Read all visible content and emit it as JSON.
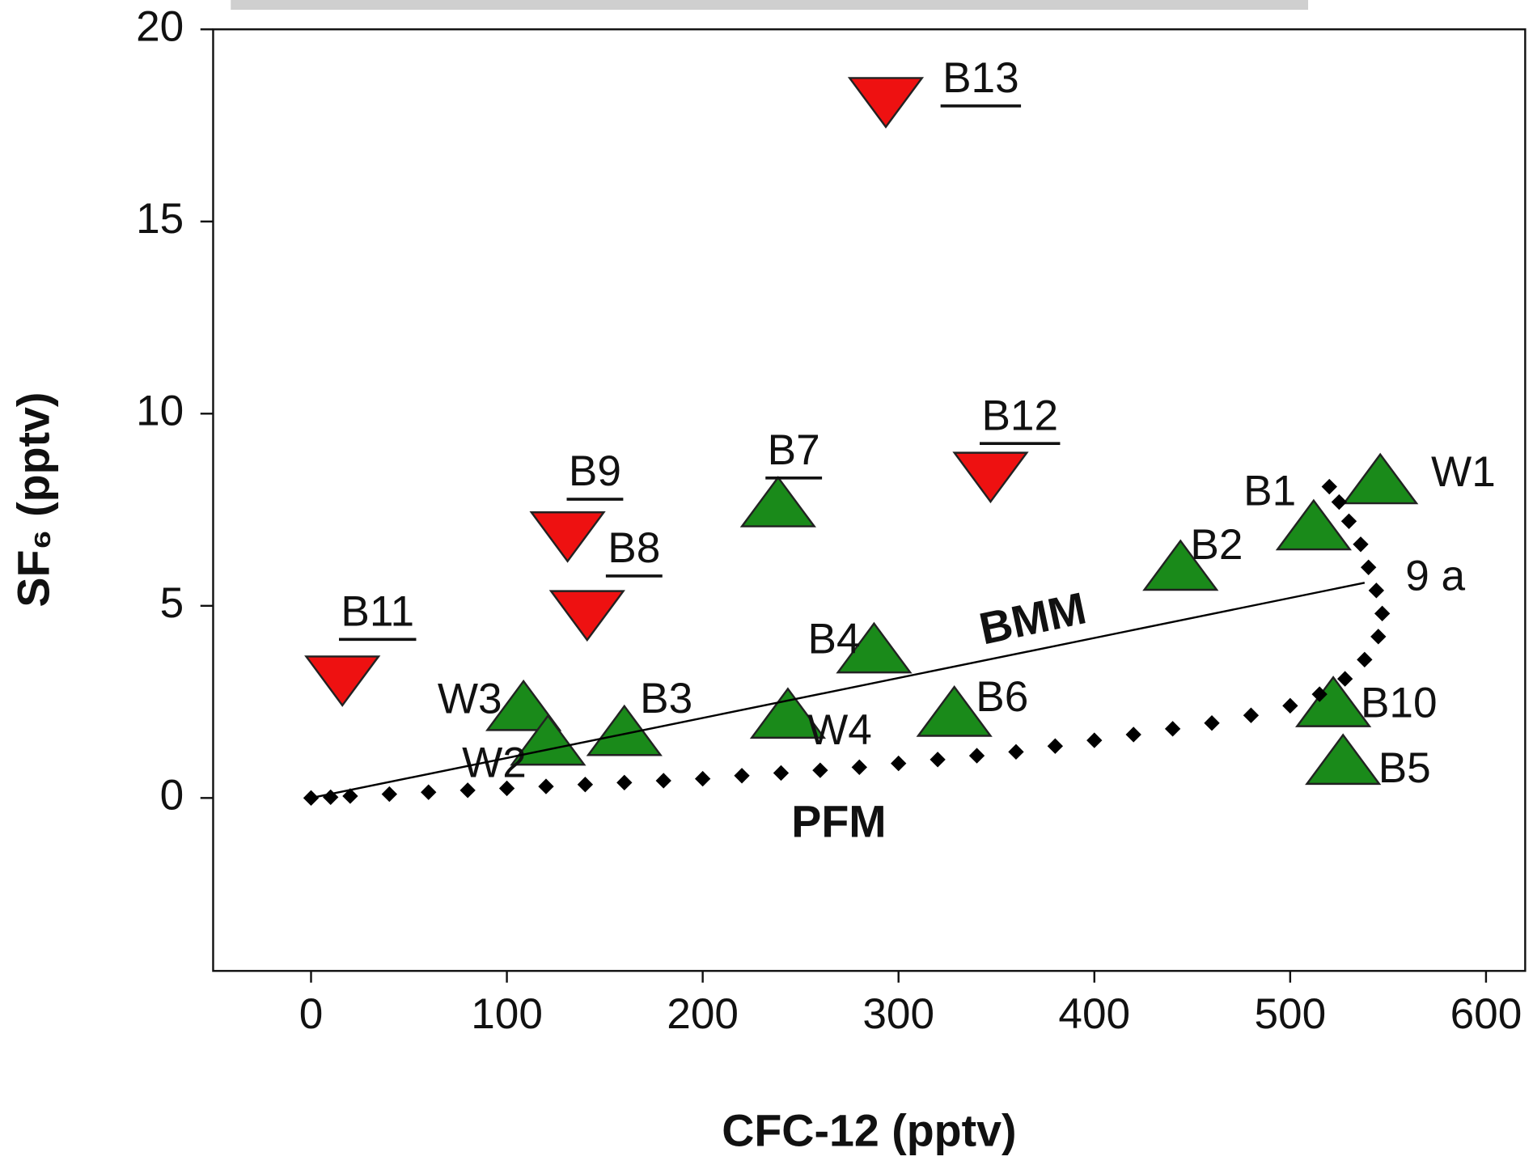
{
  "chart_data": {
    "type": "scatter",
    "xlabel": "CFC-12 (pptv)",
    "ylabel": "SF₆ (pptv)",
    "xlim": [
      -50,
      620
    ],
    "xticks": [
      0,
      100,
      200,
      300,
      400,
      500,
      600
    ],
    "ylim": [
      -4.5,
      20
    ],
    "yticks": [
      0,
      5,
      10,
      15,
      20
    ],
    "annotations": [
      "BMM",
      "PFM",
      "9 a"
    ],
    "series": [
      {
        "color": "#1a8a1a",
        "marker": "triangle-up",
        "labels": [
          "W1",
          "B1",
          "B2",
          "B4",
          "B6",
          "W4",
          "B3",
          "W3",
          "W2",
          "B7",
          "B10",
          "B5"
        ],
        "underlined": [
          false,
          false,
          false,
          false,
          false,
          false,
          false,
          false,
          false,
          true,
          false,
          false
        ],
        "x": [
          546,
          512,
          444,
          287.5,
          328.5,
          243.5,
          160,
          108.5,
          121,
          238.5,
          522,
          527
        ],
        "values": [
          8.1,
          6.9,
          5.85,
          3.7,
          2.05,
          2.0,
          1.55,
          2.2,
          1.3,
          7.5,
          2.3,
          0.8
        ]
      },
      {
        "color": "#ee1111",
        "marker": "triangle-down",
        "labels": [
          "B13",
          "B12",
          "B9",
          "B8",
          "B11"
        ],
        "underlined": [
          true,
          true,
          true,
          true,
          true
        ],
        "x": [
          293.5,
          347,
          131,
          141,
          16
        ],
        "values": [
          18.3,
          8.55,
          7.0,
          4.95,
          3.25
        ]
      },
      {
        "color": "#000000",
        "marker": "diamond",
        "x": [
          0,
          10,
          20,
          40,
          60,
          80,
          100,
          120,
          140,
          160,
          180,
          200,
          220,
          240,
          260,
          280,
          300,
          320,
          340,
          360,
          380,
          400,
          420,
          440,
          460,
          480,
          500,
          515,
          528,
          538,
          545,
          547,
          544,
          540,
          536,
          530,
          525,
          520
        ],
        "values": [
          0,
          0.02,
          0.05,
          0.1,
          0.15,
          0.2,
          0.25,
          0.3,
          0.35,
          0.4,
          0.45,
          0.5,
          0.58,
          0.65,
          0.72,
          0.8,
          0.9,
          1.0,
          1.1,
          1.2,
          1.35,
          1.5,
          1.65,
          1.8,
          1.95,
          2.15,
          2.4,
          2.7,
          3.1,
          3.6,
          4.2,
          4.8,
          5.4,
          6.0,
          6.6,
          7.2,
          7.7,
          8.1
        ]
      },
      {
        "color": "#000000",
        "marker": "none",
        "x": [
          0,
          538
        ],
        "values": [
          0,
          5.6
        ]
      }
    ]
  }
}
